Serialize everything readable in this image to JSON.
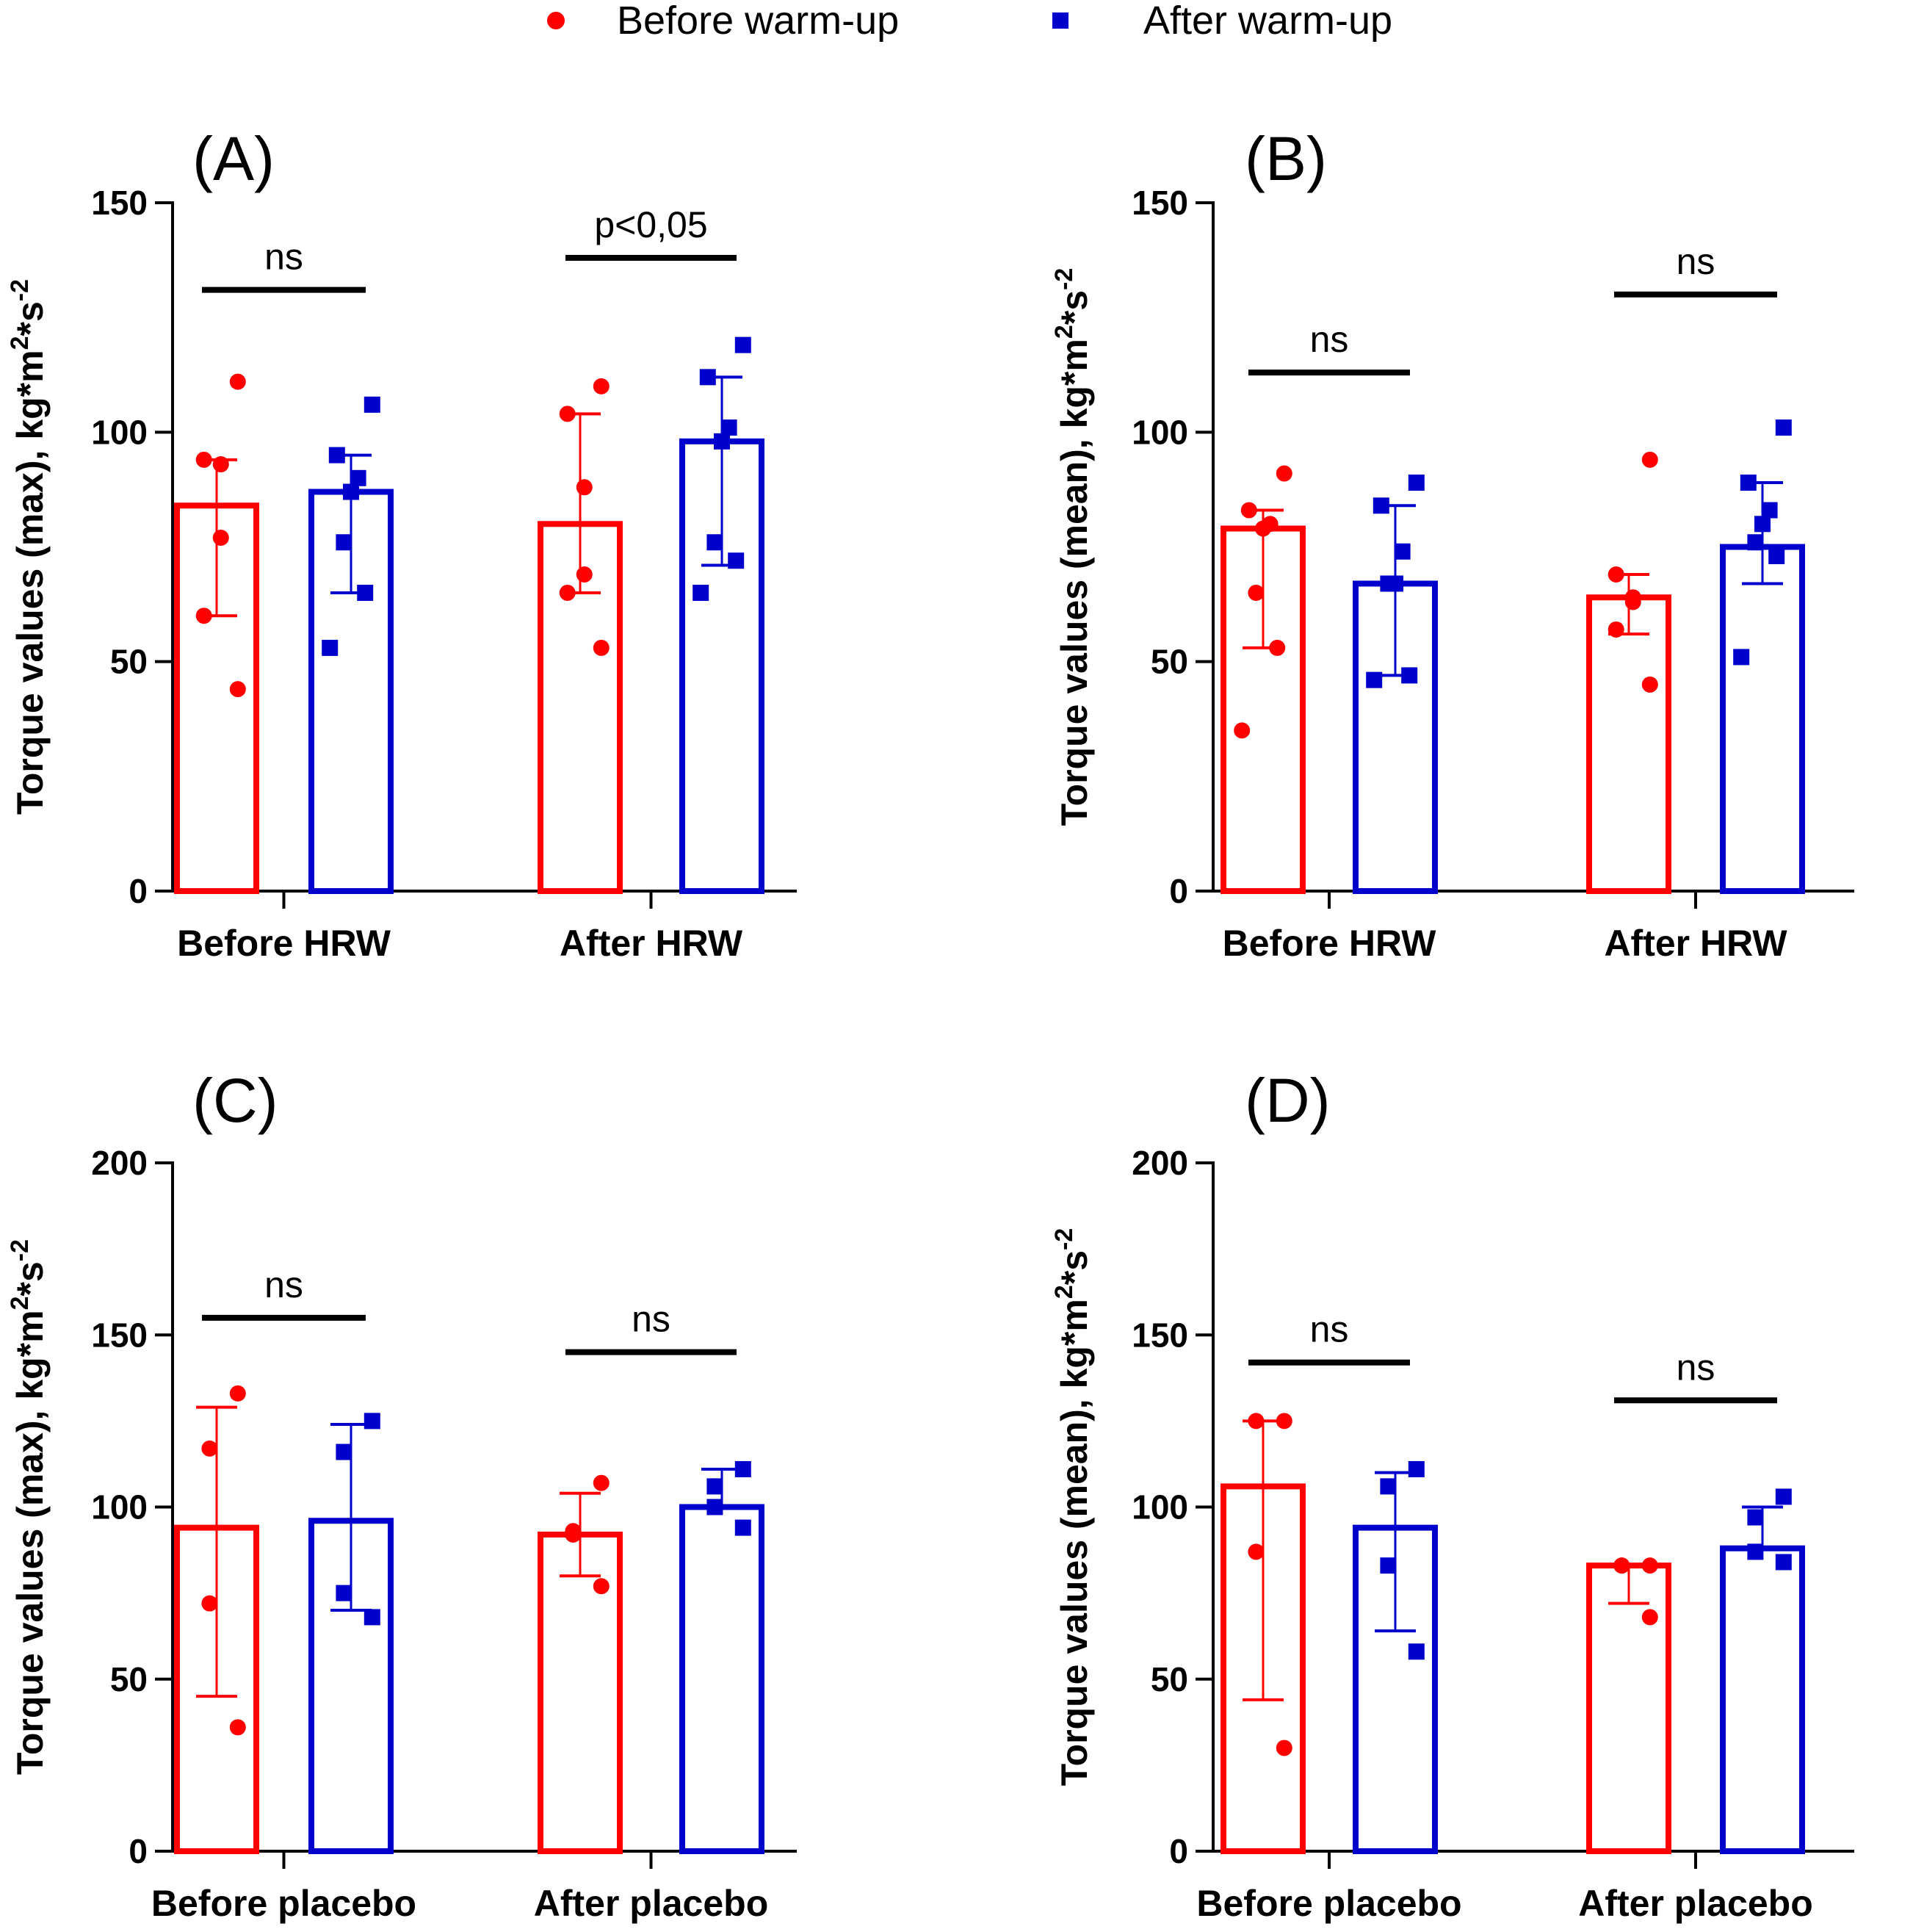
{
  "legend": {
    "before": {
      "label": "Before warm-up",
      "color": "#ff0000",
      "marker": "circle"
    },
    "after": {
      "label": "After warm-up",
      "color": "#0000cc",
      "marker": "square"
    }
  },
  "chart_data": [
    {
      "type": "bar",
      "panel": "(A)",
      "ylabel": {
        "text": "Torque values (max), kg*m",
        "sup1": "2",
        "mid": "*s",
        "sup2": "-2"
      },
      "ylim": [
        0,
        150
      ],
      "yticks": [
        "0",
        "50",
        "100",
        "150"
      ],
      "categories": [
        "Before HRW",
        "After HRW"
      ],
      "series": [
        {
          "name": "Before warm-up",
          "values": [
            84,
            80
          ],
          "err_low": [
            60,
            65
          ],
          "err_high": [
            94,
            104
          ],
          "points": [
            [
              111,
              94,
              93,
              77,
              60,
              44
            ],
            [
              110,
              104,
              88,
              69,
              65,
              53
            ]
          ]
        },
        {
          "name": "After warm-up",
          "values": [
            87,
            98
          ],
          "err_low": [
            65,
            71
          ],
          "err_high": [
            95,
            112
          ],
          "points": [
            [
              106,
              95,
              90,
              87,
              76,
              65,
              53
            ],
            [
              119,
              112,
              101,
              98,
              76,
              72,
              65
            ]
          ]
        }
      ],
      "significance": [
        {
          "label": "ns",
          "value": 131
        },
        {
          "label": "p<0,05",
          "value": 138
        }
      ]
    },
    {
      "type": "bar",
      "panel": "(B)",
      "ylabel": {
        "text": "Torque values (mean), kg*m",
        "sup1": "2",
        "mid": "*s",
        "sup2": "-2"
      },
      "ylim": [
        0,
        150
      ],
      "yticks": [
        "0",
        "50",
        "100",
        "150"
      ],
      "categories": [
        "Before HRW",
        "After HRW"
      ],
      "series": [
        {
          "name": "Before warm-up",
          "values": [
            79,
            64
          ],
          "err_low": [
            53,
            56
          ],
          "err_high": [
            83,
            69
          ],
          "points": [
            [
              91,
              83,
              80,
              79,
              65,
              53,
              35
            ],
            [
              94,
              69,
              64,
              63,
              57,
              45
            ]
          ]
        },
        {
          "name": "After warm-up",
          "values": [
            67,
            75
          ],
          "err_low": [
            47,
            67
          ],
          "err_high": [
            84,
            89
          ],
          "points": [
            [
              89,
              84,
              74,
              67,
              67,
              47,
              46
            ],
            [
              101,
              89,
              83,
              80,
              76,
              73,
              51
            ]
          ]
        }
      ],
      "significance": [
        {
          "label": "ns",
          "value": 113
        },
        {
          "label": "ns",
          "value": 130
        }
      ]
    },
    {
      "type": "bar",
      "panel": "(C)",
      "ylabel": {
        "text": "Torque values (max), kg*m",
        "sup1": "2",
        "mid": "*s",
        "sup2": "-2"
      },
      "ylim": [
        0,
        200
      ],
      "yticks": [
        "0",
        "50",
        "100",
        "150",
        "200"
      ],
      "categories": [
        "Before placebo",
        "After placebo"
      ],
      "series": [
        {
          "name": "Before warm-up",
          "values": [
            94,
            92
          ],
          "err_low": [
            45,
            80
          ],
          "err_high": [
            129,
            104
          ],
          "points": [
            [
              133,
              117,
              72,
              36
            ],
            [
              107,
              93,
              92,
              77
            ]
          ]
        },
        {
          "name": "After warm-up",
          "values": [
            96,
            100
          ],
          "err_low": [
            70,
            100
          ],
          "err_high": [
            124,
            111
          ],
          "points": [
            [
              125,
              116,
              75,
              68
            ],
            [
              111,
              106,
              100,
              94
            ]
          ]
        }
      ],
      "significance": [
        {
          "label": "ns",
          "value": 155
        },
        {
          "label": "ns",
          "value": 145
        }
      ]
    },
    {
      "type": "bar",
      "panel": "(D)",
      "ylabel": {
        "text": "Torque values (mean), kg*m",
        "sup1": "2",
        "mid": "*s",
        "sup2": "-2"
      },
      "ylim": [
        0,
        200
      ],
      "yticks": [
        "0",
        "50",
        "100",
        "150",
        "200"
      ],
      "categories": [
        "Before placebo",
        "After placebo"
      ],
      "series": [
        {
          "name": "Before warm-up",
          "values": [
            106,
            83
          ],
          "err_low": [
            44,
            72
          ],
          "err_high": [
            125,
            83
          ],
          "points": [
            [
              125,
              125,
              87,
              30
            ],
            [
              83,
              83,
              83,
              68
            ]
          ]
        },
        {
          "name": "After warm-up",
          "values": [
            94,
            88
          ],
          "err_low": [
            64,
            88
          ],
          "err_high": [
            110,
            100
          ],
          "points": [
            [
              111,
              106,
              83,
              58
            ],
            [
              103,
              97,
              87,
              84
            ]
          ]
        }
      ],
      "significance": [
        {
          "label": "ns",
          "value": 142
        },
        {
          "label": "ns",
          "value": 131
        }
      ]
    }
  ]
}
